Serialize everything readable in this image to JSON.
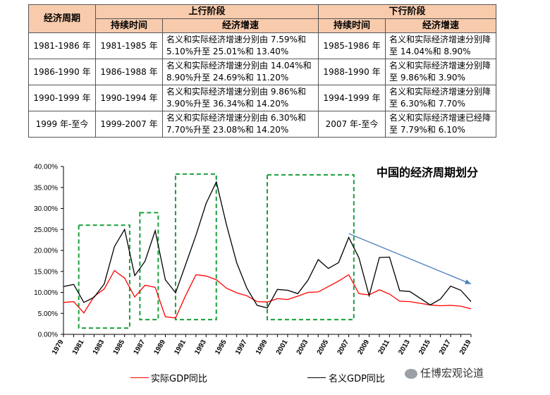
{
  "table": {
    "header_cycle": "经济周期",
    "header_up": "上行阶段",
    "header_down": "下行阶段",
    "header_duration": "持续时间",
    "header_growth": "经济增速",
    "rows": [
      {
        "cycle": "1981-1986 年",
        "up_duration": "1981-1985 年",
        "up_growth": "名义和实际经济增速分别由 7.59%和 5.10%升至 25.01%和 13.40%",
        "down_duration": "1985-1986 年",
        "down_growth": "名义和实际经济增速分别降至 14.04%和 8.90%"
      },
      {
        "cycle": "1986-1990 年",
        "up_duration": "1986-1988 年",
        "up_growth": "名义和实际经济增速分别由 14.04%和 8.90%升至 24.69%和 11.20%",
        "down_duration": "1988-1990 年",
        "down_growth": "名义和实际经济增速分别降至 9.86%和 3.90%"
      },
      {
        "cycle": "1990-1999 年",
        "up_duration": "1990-1994 年",
        "up_growth": "名义和实际经济增速分别由 9.86%和 3.90%升至 36.34%和 14.20%",
        "down_duration": "1994-1999 年",
        "down_growth": "名义和实际经济增速分别降至 6.30%和 7.70%"
      },
      {
        "cycle": "1999 年-至今",
        "up_duration": "1999-2007 年",
        "up_growth": "名义和实际经济增速分别由 6.30%和 7.70%升至 23.08%和 14.20%",
        "down_duration": "2007 年-至今",
        "down_growth": "名义和实际经济增速已经降至 7.79%和 6.10%"
      }
    ]
  },
  "chart_data": {
    "type": "line",
    "title": "中国的经济周期划分",
    "x": [
      1979,
      1980,
      1981,
      1982,
      1983,
      1984,
      1985,
      1986,
      1987,
      1988,
      1989,
      1990,
      1991,
      1992,
      1993,
      1994,
      1995,
      1996,
      1997,
      1998,
      1999,
      2000,
      2001,
      2002,
      2003,
      2004,
      2005,
      2006,
      2007,
      2008,
      2009,
      2010,
      2011,
      2012,
      2013,
      2014,
      2015,
      2016,
      2017,
      2018,
      2019
    ],
    "xticks": [
      "1979",
      "1981",
      "1983",
      "1985",
      "1987",
      "1989",
      "1991",
      "1993",
      "1995",
      "1997",
      "1999",
      "2001",
      "2003",
      "2005",
      "2007",
      "2009",
      "2011",
      "2013",
      "2015",
      "2017",
      "2019"
    ],
    "yticks": [
      "0.00%",
      "5.00%",
      "10.00%",
      "15.00%",
      "20.00%",
      "25.00%",
      "30.00%",
      "35.00%",
      "40.00%"
    ],
    "ylim": [
      0,
      40
    ],
    "series": [
      {
        "name": "实际GDP同比",
        "color": "#ff0000",
        "values": [
          7.6,
          7.8,
          5.1,
          9.0,
          10.8,
          15.2,
          13.4,
          8.9,
          11.7,
          11.2,
          4.2,
          3.9,
          9.3,
          14.2,
          13.9,
          13.0,
          11.0,
          9.9,
          9.2,
          7.8,
          7.7,
          8.5,
          8.3,
          9.1,
          10.0,
          10.1,
          11.4,
          12.7,
          14.2,
          9.7,
          9.4,
          10.6,
          9.6,
          7.9,
          7.8,
          7.4,
          7.0,
          6.8,
          6.9,
          6.7,
          6.1
        ]
      },
      {
        "name": "名义GDP同比",
        "color": "#000000",
        "values": [
          11.4,
          11.9,
          7.6,
          8.8,
          12.0,
          20.9,
          25.0,
          14.0,
          17.4,
          24.7,
          13.0,
          9.9,
          16.7,
          23.6,
          31.2,
          36.3,
          26.1,
          17.1,
          11.0,
          6.9,
          6.3,
          10.7,
          10.5,
          9.7,
          12.9,
          17.8,
          15.7,
          17.1,
          23.1,
          18.2,
          9.2,
          18.3,
          18.4,
          10.4,
          10.2,
          8.6,
          7.0,
          8.4,
          11.5,
          10.5,
          7.8
        ]
      }
    ],
    "legend_position": "bottom",
    "grid": false,
    "annotation_arrow": {
      "from_x": 2007,
      "from_y": 24,
      "to_x": 2019,
      "to_y": 12,
      "color": "#4a7ebb"
    },
    "cycle_boxes": [
      {
        "x_start": 1980.5,
        "x_end": 1985.5,
        "y_low": 1.5,
        "y_high": 26.0
      },
      {
        "x_start": 1986.5,
        "x_end": 1988.3,
        "y_low": 3.5,
        "y_high": 29.0
      },
      {
        "x_start": 1990.0,
        "x_end": 1994.0,
        "y_low": 3.5,
        "y_high": 38.2
      },
      {
        "x_start": 1999.0,
        "x_end": 2007.5,
        "y_low": 3.5,
        "y_high": 38.0
      }
    ]
  },
  "watermark": "任博宏观论道"
}
